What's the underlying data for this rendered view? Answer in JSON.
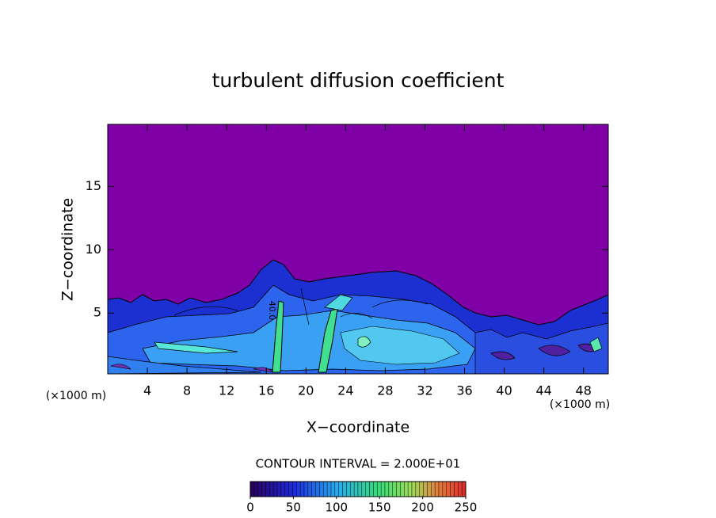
{
  "chart_data": {
    "type": "contour",
    "title": "turbulent diffusion coefficient",
    "x_label": "X−coordinate",
    "y_label": "Z−coordinate",
    "x_unit": "(×1000 m)",
    "y_unit": "(×1000 m)",
    "xlim": [
      0,
      50.5
    ],
    "xticks": [
      4,
      8,
      12,
      16,
      20,
      24,
      28,
      32,
      36,
      40,
      44,
      48
    ],
    "ylim": [
      0.2,
      19.9
    ],
    "yticks": [
      5,
      10,
      15
    ],
    "contour_label": "40.0",
    "contour_interval": "CONTOUR INTERVAL = 2.000E+01",
    "colorbar": {
      "lim": [
        0,
        250
      ],
      "ticks": [
        0,
        50,
        100,
        150,
        200,
        250
      ]
    }
  }
}
